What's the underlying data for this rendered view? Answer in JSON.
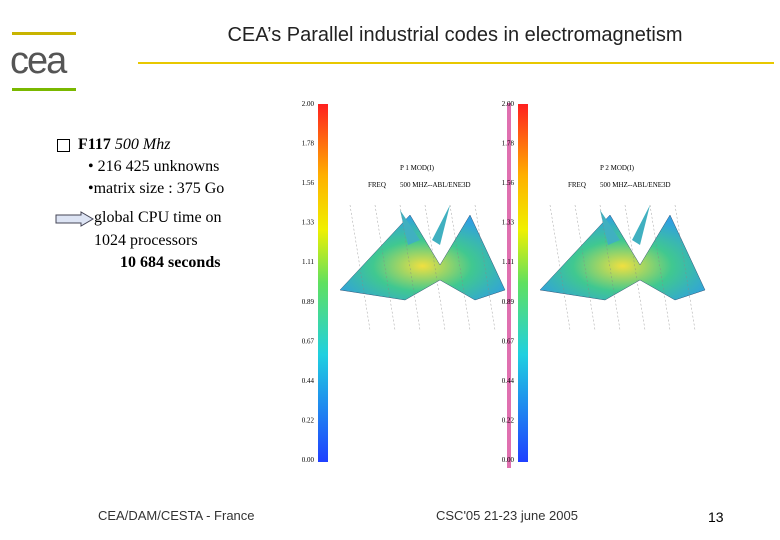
{
  "header": {
    "logo": "cea",
    "title": "CEA’s Parallel industrial codes in electromagnetism"
  },
  "content": {
    "bullet": {
      "title": "F117",
      "subtitle": "500 Mhz",
      "items": [
        "• 216 425  unknowns",
        "•matrix size : 375 Go"
      ]
    },
    "result": [
      "global CPU time on",
      "1024 processors",
      "10 684 seconds"
    ]
  },
  "figures": [
    {
      "label": "P 1 MOD(I)",
      "freq_label": "FREQ",
      "freq": "500 MHZ--ABL/ENE3D",
      "scale": [
        "2.00",
        "1.78",
        "1.56",
        "1.33",
        "1.11",
        "0.89",
        "0.67",
        "0.44",
        "0.22",
        "0.00"
      ]
    },
    {
      "label": "P 2 MOD(I)",
      "freq_label": "FREQ",
      "freq": "500 MHZ--ABL/ENE3D",
      "scale": [
        "2.00",
        "1.78",
        "1.56",
        "1.33",
        "1.11",
        "0.89",
        "0.67",
        "0.44",
        "0.22",
        "0.00"
      ]
    }
  ],
  "footer": {
    "left": "CEA/DAM/CESTA - France",
    "center": "CSC'05 21-23 june 2005",
    "page": "13"
  }
}
